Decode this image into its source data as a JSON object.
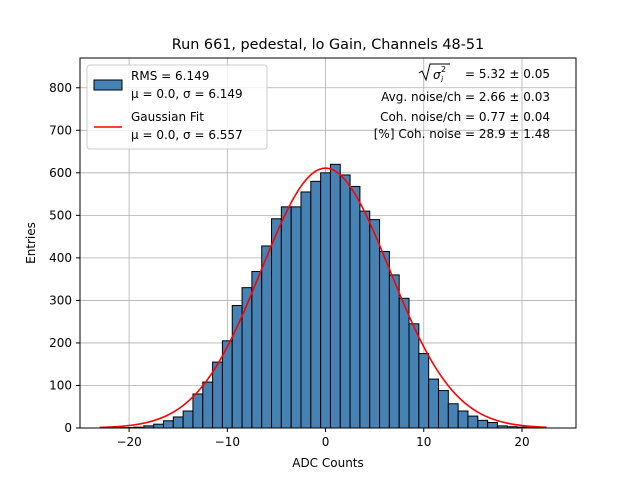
{
  "chart_data": {
    "type": "bar",
    "title": "Run 661, pedestal, lo Gain, Channels 48-51",
    "xlabel": "ADC Counts",
    "ylabel": "Entries",
    "xlim": [
      -25,
      25.5
    ],
    "ylim": [
      0,
      870
    ],
    "grid": true,
    "legend_position": "upper-left",
    "x_ticks": [
      -20,
      -10,
      0,
      10,
      20
    ],
    "x_tick_labels": [
      "−20",
      "−10",
      "0",
      "10",
      "20"
    ],
    "y_ticks": [
      0,
      100,
      200,
      300,
      400,
      500,
      600,
      700,
      800
    ],
    "y_tick_labels": [
      "0",
      "100",
      "200",
      "300",
      "400",
      "500",
      "600",
      "700",
      "800"
    ],
    "histogram": {
      "bin_edges": [
        -21.5,
        -20.5,
        -19.5,
        -18.5,
        -17.5,
        -16.5,
        -15.5,
        -14.5,
        -13.5,
        -12.5,
        -11.5,
        -10.5,
        -9.5,
        -8.5,
        -7.5,
        -6.5,
        -5.5,
        -4.5,
        -3.5,
        -2.5,
        -1.5,
        -0.5,
        0.5,
        1.5,
        2.5,
        3.5,
        4.5,
        5.5,
        6.5,
        7.5,
        8.5,
        9.5,
        10.5,
        11.5,
        12.5,
        13.5,
        14.5,
        15.5,
        16.5,
        17.5,
        18.5,
        19.5,
        20.5,
        21.5
      ],
      "counts": [
        1,
        1,
        2,
        5,
        9,
        17,
        26,
        40,
        80,
        108,
        155,
        205,
        288,
        330,
        368,
        428,
        492,
        520,
        520,
        555,
        580,
        600,
        620,
        595,
        568,
        510,
        490,
        415,
        360,
        305,
        245,
        175,
        115,
        88,
        57,
        40,
        28,
        18,
        13,
        5,
        3,
        2,
        1
      ]
    },
    "gaussian_fit": {
      "mu": 0.0,
      "sigma": 6.557,
      "amplitude": 611,
      "x_range": [
        -23,
        22.5
      ]
    },
    "series": [
      {
        "name": "RMS = 6.149",
        "sub": "μ = 0.0, σ = 6.149",
        "color": "#4682b4",
        "kind": "histogram"
      },
      {
        "name": "Gaussian Fit",
        "sub": "μ = 0.0, σ = 6.557",
        "color": "#ff0000",
        "kind": "line"
      }
    ],
    "annotations": {
      "sigma_label_suffix": " = 5.32 ± 0.05",
      "avg_noise": "Avg. noise/ch = 2.66 ± 0.03",
      "coh_noise": "Coh. noise/ch = 0.77 ± 0.04",
      "coh_percent": "[%] Coh. noise = 28.9 ± 1.48"
    }
  }
}
